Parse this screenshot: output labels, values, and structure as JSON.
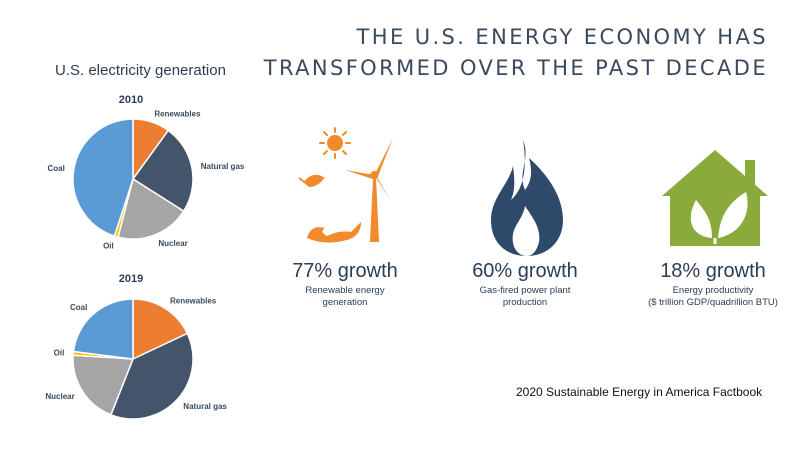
{
  "header": {
    "title_line1": "THE U.S. ENERGY ECONOMY HAS",
    "title_line2": "TRANSFORMED OVER THE PAST DECADE"
  },
  "electricity_title": "U.S. electricity generation",
  "colors": {
    "Renewables": "#ed7d31",
    "Natural gas": "#44546a",
    "Nuclear": "#a5a5a5",
    "Oil": "#ffc000",
    "Coal": "#5b9bd5",
    "orange": "#f08a2a",
    "navy": "#2e4a6b",
    "green": "#8aab3c"
  },
  "chart_data": [
    {
      "type": "pie",
      "title": "2010",
      "labels": [
        "Renewables",
        "Natural gas",
        "Nuclear",
        "Oil",
        "Coal"
      ],
      "values": [
        10,
        24,
        20,
        1,
        45
      ]
    },
    {
      "type": "pie",
      "title": "2019",
      "labels": [
        "Renewables",
        "Natural gas",
        "Nuclear",
        "Oil",
        "Coal"
      ],
      "values": [
        18,
        38,
        20,
        1,
        23
      ]
    }
  ],
  "stats": [
    {
      "value": "77% growth",
      "line1": "Renewable energy",
      "line2": "generation",
      "icon": "renewable-energy-icon"
    },
    {
      "value": "60% growth",
      "line1": "Gas-fired power plant",
      "line2": "production",
      "icon": "flame-icon"
    },
    {
      "value": "18% growth",
      "line1": "Energy productivity",
      "line2": "($ trillion GDP/quadrillion BTU)",
      "icon": "leaf-house-icon"
    }
  ],
  "source": "2020 Sustainable Energy in America Factbook"
}
